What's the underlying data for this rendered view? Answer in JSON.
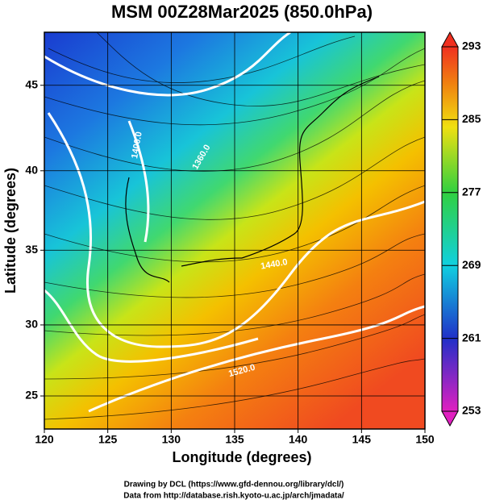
{
  "chart_data": {
    "type": "map",
    "title": "MSM 00Z28Mar2025 (850.0hPa)",
    "x_label": "Longitude (degrees)",
    "y_label": "Latitude  (degrees)",
    "xlim": [
      120,
      150
    ],
    "ylim": [
      22.6,
      47.9
    ],
    "xticks": [
      120,
      125,
      130,
      135,
      140,
      145,
      150
    ],
    "yticks": [
      25,
      30,
      35,
      40,
      45
    ],
    "grid": true,
    "projection": "mercator",
    "colorbar": {
      "clim": [
        253,
        293
      ],
      "ticks": [
        253,
        261,
        269,
        277,
        285,
        293
      ]
    },
    "contour_labels": [
      "1400.0",
      "1360.0",
      "1440.0",
      "1520.0"
    ]
  },
  "footer": {
    "line1": "Drawing by DCL (https://www.gfd-dennou.org/library/dcl/)",
    "line2": "Data from http://database.rish.kyoto-u.ac.jp/arch/jmadata/"
  }
}
